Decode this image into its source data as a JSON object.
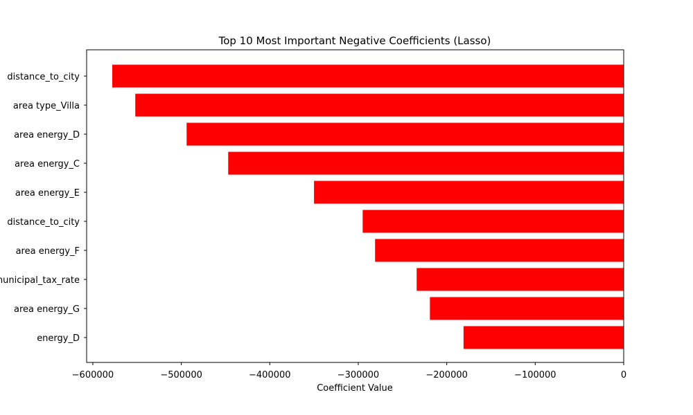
{
  "chart_data": {
    "type": "bar",
    "orientation": "horizontal",
    "title": "Top 10 Most Important Negative Coefficients (Lasso)",
    "xlabel": "Coefficient Value",
    "ylabel": "",
    "categories": [
      "distance_to_city",
      "area type_Villa",
      "area energy_D",
      "area energy_C",
      "area energy_E",
      "distance_to_city",
      "area energy_F",
      "municipal_tax_rate",
      "area energy_G",
      "energy_D"
    ],
    "values": [
      -578000,
      -552000,
      -494000,
      -447000,
      -350000,
      -295000,
      -281000,
      -234000,
      -219000,
      -181000
    ],
    "xlim": [
      -607000,
      0
    ],
    "xticks": [
      -600000,
      -500000,
      -400000,
      -300000,
      -200000,
      -100000,
      0
    ],
    "xtick_labels": [
      "−600000",
      "−500000",
      "−400000",
      "−300000",
      "−200000",
      "−100000",
      "0"
    ],
    "bar_color": "#ff0000",
    "grid": false,
    "legend": "none"
  }
}
